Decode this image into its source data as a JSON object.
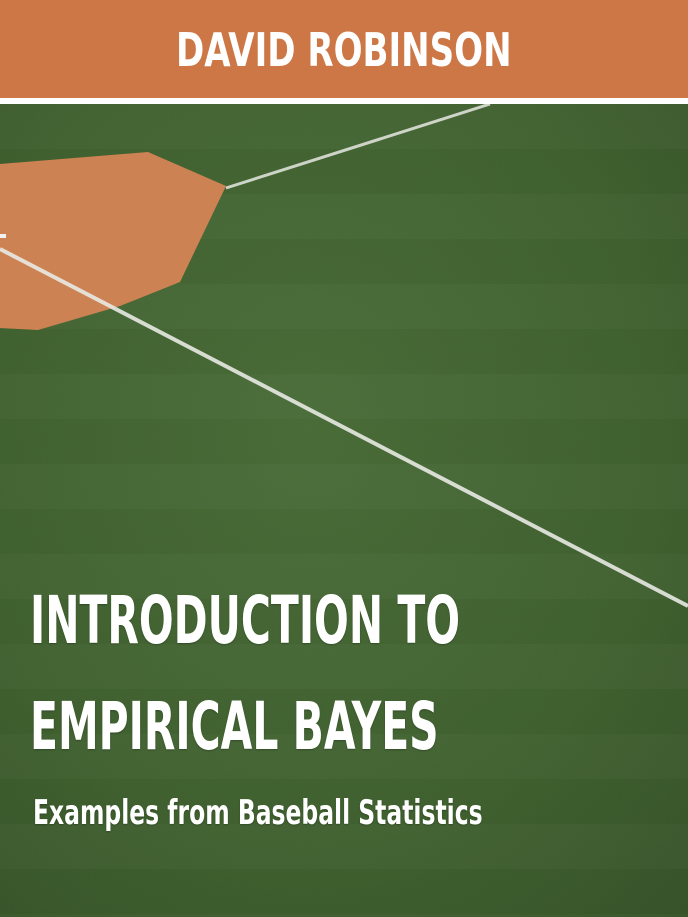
{
  "cover": {
    "author": "DAVID ROBINSON",
    "title_line_1": "INTRODUCTION TO",
    "title_line_2": "EMPIRICAL BAYES",
    "subtitle": "Examples from Baseball Statistics"
  },
  "colors": {
    "author_bar": "#cc7745",
    "grass": "#3e5f2e",
    "infield_dirt": "#d98a58",
    "chalk_line": "#e6e8e2",
    "text": "#ffffff"
  }
}
